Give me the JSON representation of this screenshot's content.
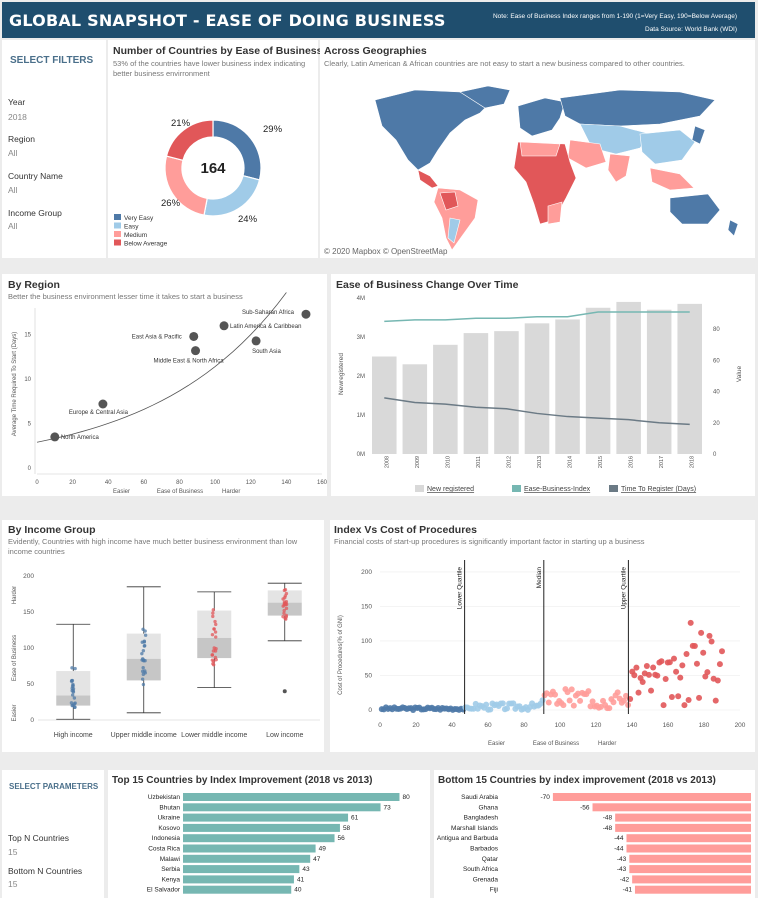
{
  "header": {
    "title": "GLOBAL SNAPSHOT - EASE OF DOING BUSINESS",
    "note": "Note: Ease of Business Index ranges from 1-190 (1=Very Easy, 190=Below Average)",
    "source": "Data Source: World Bank (WDI)"
  },
  "filters": {
    "heading": "SELECT FILTERS",
    "items": [
      {
        "label": "Year",
        "value": "2018"
      },
      {
        "label": "Region",
        "value": "All"
      },
      {
        "label": "Country Name",
        "value": "All"
      },
      {
        "label": "Income Group",
        "value": "All"
      }
    ]
  },
  "parameters": {
    "heading": "SELECT PARAMETERS",
    "items": [
      {
        "label": "Top N Countries",
        "value": "15"
      },
      {
        "label": "Bottom N Countries",
        "value": "15"
      }
    ]
  },
  "donut": {
    "title": "Number of Countries by Ease of Business",
    "subtitle": "53% of the countries have lower business index indicating better business envirronment",
    "center": "164",
    "colors": [
      "#4e79a7",
      "#a0cbe8",
      "#ff9d9a",
      "#e15759"
    ]
  },
  "map": {
    "title": "Across Geographies",
    "subtitle": "Clearly, Latin American & African countries are not easy to start a new business compared to other countries.",
    "credit": "© 2020 Mapbox © OpenStreetMap"
  },
  "region": {
    "title": "By Region",
    "subtitle": "Better the business environment lesser time it takes to start a business",
    "xlabel_left": "Easier",
    "xlabel_mid": "Ease of Business",
    "xlabel_right": "Harder",
    "ylabel": "Average Time Required To Start (Days)"
  },
  "change": {
    "title": "Ease of Business Change Over Time",
    "ylabel_left": "Newregistered",
    "ylabel_right": "Value",
    "legend": [
      "New registered",
      "Ease-Business-Index",
      "Time To Register (Days)"
    ]
  },
  "income": {
    "title": "By Income Group",
    "subtitle": "Evidently, Countries with high income have much better business environment than low income countries",
    "ylabel_easier": "Easier",
    "ylabel_mid": "Ease of Business",
    "ylabel_harder": "Harder"
  },
  "cost": {
    "title": "Index Vs Cost of Procedures",
    "subtitle": "Financial costs of start-up procedures is significantly important factor in starting up a business",
    "ylabel": "Cost of Procedures(% of GNI)",
    "xlabel_left": "Easier",
    "xlabel_mid": "Ease of Business",
    "xlabel_right": "Harder",
    "lines": [
      "Lower Quartile",
      "Median",
      "Upper Quartile"
    ]
  },
  "top": {
    "title": "Top 15 Countries by  Index Improvement (2018 vs 2013)"
  },
  "bottom": {
    "title": "Bottom 15 Countries by index improvement  (2018 vs 2013)"
  },
  "chart_data": [
    {
      "type": "pie",
      "title": "Number of Countries by Ease of Business",
      "categories": [
        "Very Easy",
        "Easy",
        "Medium",
        "Below Average"
      ],
      "values": [
        29,
        24,
        26,
        21
      ],
      "unit": "%",
      "total": 164
    },
    {
      "type": "scatter",
      "title": "By Region",
      "xlim": [
        0,
        160
      ],
      "ylim": [
        0,
        18
      ],
      "xticks": [
        0,
        20,
        40,
        60,
        80,
        100,
        120,
        140,
        160
      ],
      "yticks": [
        0,
        5,
        10,
        15
      ],
      "points": [
        {
          "label": "North America",
          "x": 10,
          "y": 3.5
        },
        {
          "label": "Europe & Central Asia",
          "x": 37,
          "y": 7.2
        },
        {
          "label": "Middle East & North Africa",
          "x": 89,
          "y": 13.2
        },
        {
          "label": "East Asia & Pacific",
          "x": 88,
          "y": 14.8
        },
        {
          "label": "Latin America & Caribbean",
          "x": 105,
          "y": 16
        },
        {
          "label": "South Asia",
          "x": 123,
          "y": 14.3
        },
        {
          "label": "Sub-Saharan Africa",
          "x": 151,
          "y": 17.3
        }
      ]
    },
    {
      "type": "bar",
      "title": "Ease of Business Change Over Time",
      "categories": [
        "2008",
        "2009",
        "2010",
        "2011",
        "2012",
        "2013",
        "2014",
        "2015",
        "2016",
        "2017",
        "2018"
      ],
      "series": [
        {
          "name": "New registered",
          "unit": "M",
          "values": [
            2.5,
            2.3,
            2.8,
            3.1,
            3.15,
            3.35,
            3.45,
            3.75,
            3.9,
            3.7,
            3.85
          ]
        },
        {
          "name": "Ease-Business-Index",
          "values": [
            85,
            86,
            86,
            87,
            87,
            88,
            88,
            91,
            91,
            91,
            91
          ]
        },
        {
          "name": "Time To Register (Days)",
          "values": [
            36,
            33,
            32,
            30,
            29,
            26,
            24,
            23,
            22,
            20,
            19
          ]
        }
      ],
      "ylim_left": [
        0,
        4
      ],
      "yticks_left": [
        "0M",
        "1M",
        "2M",
        "3M",
        "4M"
      ],
      "ylim_right": [
        0,
        100
      ],
      "yticks_right": [
        0,
        20,
        40,
        60,
        80
      ]
    },
    {
      "type": "box",
      "title": "By Income Group",
      "categories": [
        "High income",
        "Upper middle income",
        "Lower middle income",
        "Low income"
      ],
      "ylim": [
        0,
        200
      ],
      "yticks": [
        0,
        50,
        100,
        150,
        200
      ],
      "boxes": [
        {
          "min": 1,
          "q1": 20,
          "median": 34,
          "q3": 68,
          "max": 133
        },
        {
          "min": 10,
          "q1": 55,
          "median": 85,
          "q3": 120,
          "max": 185
        },
        {
          "min": 45,
          "q1": 86,
          "median": 114,
          "q3": 152,
          "max": 178
        },
        {
          "min": 110,
          "q1": 145,
          "median": 163,
          "q3": 180,
          "max": 190
        }
      ]
    },
    {
      "type": "scatter",
      "title": "Index Vs Cost of Procedures",
      "xlim": [
        0,
        200
      ],
      "ylim": [
        0,
        210
      ],
      "xticks": [
        0,
        20,
        40,
        60,
        80,
        100,
        120,
        140,
        160,
        180,
        200
      ],
      "yticks": [
        0,
        50,
        100,
        150,
        200
      ],
      "quartiles": {
        "lower": 47,
        "median": 91,
        "upper": 138
      }
    },
    {
      "type": "bar",
      "title": "Top 15 Countries by  Index Improvement (2018 vs 2013)",
      "categories": [
        "Uzbekistan",
        "Bhutan",
        "Ukraine",
        "Kosovo",
        "Indonesia",
        "Costa Rica",
        "Malawi",
        "Serbia",
        "Kenya",
        "El Salvador"
      ],
      "values": [
        80,
        73,
        61,
        58,
        56,
        49,
        47,
        43,
        41,
        40
      ]
    },
    {
      "type": "bar",
      "title": "Bottom 15 Countries by index improvement  (2018 vs 2013)",
      "categories": [
        "Saudi Arabia",
        "Ghana",
        "Bangladesh",
        "Marshall Islands",
        "Antigua and Barbuda",
        "Barbados",
        "Qatar",
        "South Africa",
        "Grenada",
        "Fiji"
      ],
      "values": [
        -70,
        -56,
        -48,
        -48,
        -44,
        -44,
        -43,
        -43,
        -42,
        -41
      ]
    }
  ]
}
